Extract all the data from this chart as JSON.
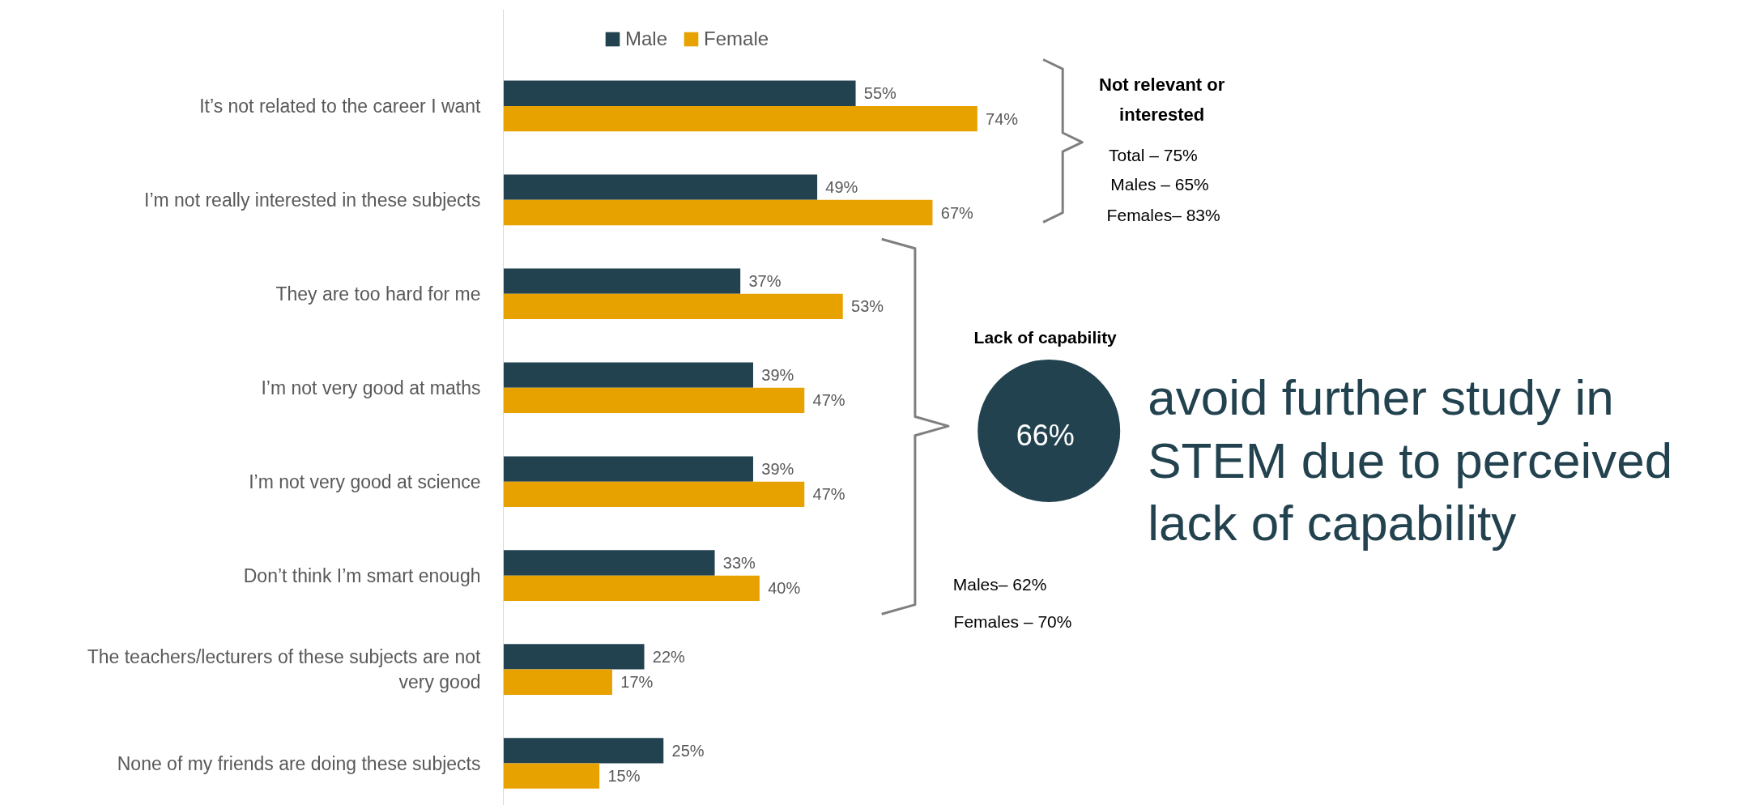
{
  "chart_data": {
    "type": "bar",
    "orientation": "horizontal",
    "legend": "top",
    "categories": [
      "It’s not related to the career I want",
      "I’m not really interested in these subjects",
      "They are too hard for me",
      "I’m not very good at maths",
      "I’m not very good at science",
      "Don’t think I’m smart enough",
      "The teachers/lecturers of these subjects are not very good",
      "None of my friends are doing these subjects"
    ],
    "series": [
      {
        "name": "Male",
        "color": "#23424f",
        "values": [
          55,
          49,
          37,
          39,
          39,
          33,
          22,
          25
        ],
        "value_labels": [
          "55%",
          "49%",
          "37%",
          "39%",
          "39%",
          "33%",
          "22%",
          "25%"
        ]
      },
      {
        "name": "Female",
        "color": "#e8a200",
        "values": [
          74,
          67,
          53,
          47,
          47,
          40,
          17,
          15
        ],
        "value_labels": [
          "74%",
          "67%",
          "53%",
          "47%",
          "47%",
          "40%",
          "17%",
          "15%"
        ]
      }
    ],
    "annotations": [
      "Not relevant or interested",
      "Total – 75%",
      "Males – 65%",
      "Females– 83%",
      "Lack of capability",
      "66%",
      "Males– 62%",
      "Females – 70%",
      "avoid further study in STEM due to perceived lack of capability"
    ]
  }
}
